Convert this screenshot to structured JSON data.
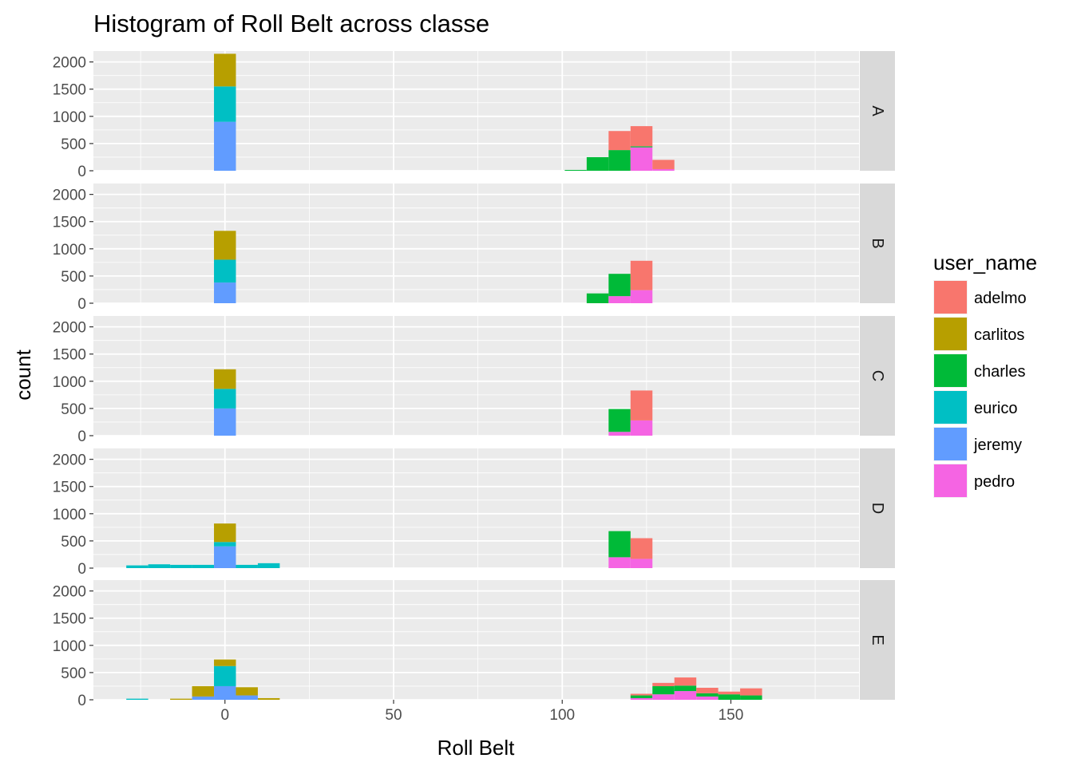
{
  "chart_data": {
    "type": "bar",
    "subtype": "faceted stacked histogram",
    "title": "Histogram of Roll Belt across classe",
    "xlabel": "Roll Belt",
    "ylabel": "count",
    "xlim": [
      -39,
      188
    ],
    "ylim": [
      0,
      2200
    ],
    "x_ticks": [
      0,
      50,
      100,
      150
    ],
    "y_ticks": [
      0,
      500,
      1000,
      1500,
      2000
    ],
    "grid": true,
    "bin_width": 6.5,
    "stack_order": [
      "jeremy",
      "eurico",
      "pedro",
      "charles",
      "adelmo",
      "carlitos"
    ],
    "legend": {
      "title": "user_name",
      "position": "right",
      "entries": [
        {
          "name": "adelmo",
          "color": "#F8766D"
        },
        {
          "name": "carlitos",
          "color": "#B79F00"
        },
        {
          "name": "charles",
          "color": "#00BA38"
        },
        {
          "name": "eurico",
          "color": "#00BFC4"
        },
        {
          "name": "jeremy",
          "color": "#619CFF"
        },
        {
          "name": "pedro",
          "color": "#F564E3"
        }
      ]
    },
    "facets": [
      {
        "label": "A",
        "bins": [
          {
            "x": 0,
            "stacks": {
              "jeremy": 900,
              "eurico": 650,
              "carlitos": 600
            }
          },
          {
            "x": 104,
            "stacks": {
              "charles": 15
            }
          },
          {
            "x": 110.5,
            "stacks": {
              "charles": 250
            }
          },
          {
            "x": 117,
            "stacks": {
              "charles": 380,
              "adelmo": 350
            }
          },
          {
            "x": 123.5,
            "stacks": {
              "pedro": 430,
              "charles": 20,
              "adelmo": 370
            }
          },
          {
            "x": 130,
            "stacks": {
              "pedro": 30,
              "adelmo": 170
            }
          }
        ]
      },
      {
        "label": "B",
        "bins": [
          {
            "x": 0,
            "stacks": {
              "jeremy": 380,
              "eurico": 420,
              "carlitos": 530
            }
          },
          {
            "x": 110.5,
            "stacks": {
              "charles": 180
            }
          },
          {
            "x": 117,
            "stacks": {
              "pedro": 130,
              "charles": 410
            }
          },
          {
            "x": 123.5,
            "stacks": {
              "pedro": 240,
              "adelmo": 540
            }
          }
        ]
      },
      {
        "label": "C",
        "bins": [
          {
            "x": 0,
            "stacks": {
              "jeremy": 500,
              "eurico": 360,
              "carlitos": 360
            }
          },
          {
            "x": 117,
            "stacks": {
              "pedro": 70,
              "charles": 420
            }
          },
          {
            "x": 123.5,
            "stacks": {
              "pedro": 280,
              "adelmo": 550
            }
          }
        ]
      },
      {
        "label": "D",
        "bins": [
          {
            "x": -26,
            "stacks": {
              "eurico": 50
            }
          },
          {
            "x": -19.5,
            "stacks": {
              "eurico": 70
            }
          },
          {
            "x": -13,
            "stacks": {
              "eurico": 60
            }
          },
          {
            "x": -6.5,
            "stacks": {
              "eurico": 60
            }
          },
          {
            "x": 0,
            "stacks": {
              "jeremy": 400,
              "eurico": 80,
              "carlitos": 340
            }
          },
          {
            "x": 6.5,
            "stacks": {
              "eurico": 60
            }
          },
          {
            "x": 13,
            "stacks": {
              "eurico": 90
            }
          },
          {
            "x": 117,
            "stacks": {
              "pedro": 200,
              "charles": 480
            }
          },
          {
            "x": 123.5,
            "stacks": {
              "pedro": 170,
              "adelmo": 380
            }
          }
        ]
      },
      {
        "label": "E",
        "bins": [
          {
            "x": -26,
            "stacks": {
              "eurico": 20
            }
          },
          {
            "x": -13,
            "stacks": {
              "carlitos": 20
            }
          },
          {
            "x": -6.5,
            "stacks": {
              "jeremy": 60,
              "carlitos": 190
            }
          },
          {
            "x": 0,
            "stacks": {
              "jeremy": 250,
              "eurico": 370,
              "carlitos": 120
            }
          },
          {
            "x": 6.5,
            "stacks": {
              "jeremy": 80,
              "carlitos": 150
            }
          },
          {
            "x": 13,
            "stacks": {
              "carlitos": 30
            }
          },
          {
            "x": 123.5,
            "stacks": {
              "pedro": 30,
              "charles": 50,
              "adelmo": 30
            }
          },
          {
            "x": 130,
            "stacks": {
              "pedro": 100,
              "charles": 150,
              "adelmo": 60
            }
          },
          {
            "x": 136.5,
            "stacks": {
              "pedro": 160,
              "charles": 100,
              "adelmo": 150
            }
          },
          {
            "x": 143,
            "stacks": {
              "pedro": 60,
              "charles": 60,
              "adelmo": 100
            }
          },
          {
            "x": 149.5,
            "stacks": {
              "charles": 100,
              "adelmo": 50
            }
          },
          {
            "x": 156,
            "stacks": {
              "charles": 80,
              "adelmo": 130
            }
          }
        ]
      }
    ]
  }
}
